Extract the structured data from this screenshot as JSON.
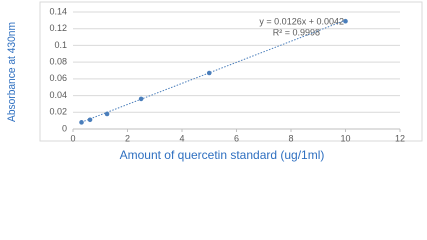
{
  "chart_data": {
    "type": "scatter",
    "y_label": "Absorbance at 430nm",
    "x_label": "Amount of quercetin standard (ug/1ml)",
    "x": [
      0.3125,
      0.625,
      1.25,
      2.5,
      5,
      10
    ],
    "values": [
      0.008,
      0.011,
      0.018,
      0.036,
      0.067,
      0.129
    ],
    "color": "#4a7ebb",
    "xlim": [
      0,
      12
    ],
    "xticks": [
      0,
      2,
      4,
      6,
      8,
      10,
      12
    ],
    "ylim": [
      0,
      0.14
    ],
    "yticks": [
      0,
      0.02,
      0.04,
      0.06,
      0.08,
      0.1,
      0.12,
      0.14
    ],
    "grid": true,
    "trendline": {
      "slope": 0.0126,
      "intercept": 0.0042,
      "label": "y = 0.0126x + 0.0042",
      "r2_label": "R² = 0.9998"
    }
  }
}
